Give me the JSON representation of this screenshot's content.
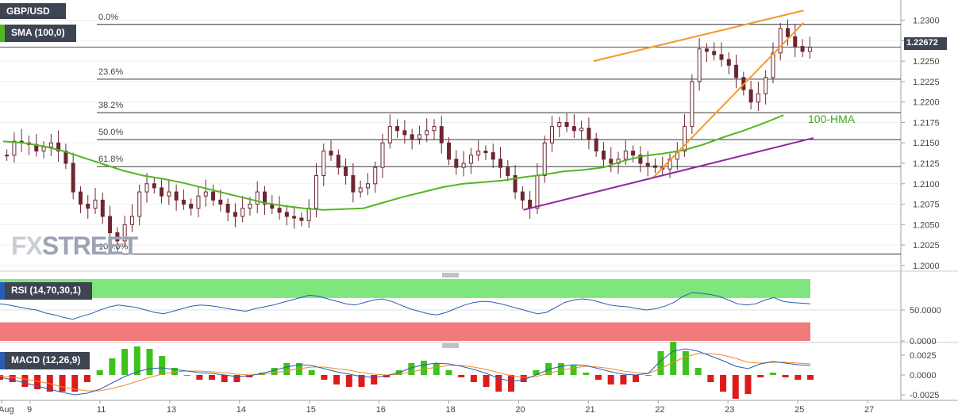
{
  "symbol": "GBP/USD",
  "watermark": {
    "part1": "FX",
    "part2": "STREET"
  },
  "indicators": {
    "sma": "SMA (100,0)",
    "rsi": "RSI (14,70,30,1)",
    "macd": "MACD (12,26,9)",
    "hma_annotation": "100-HMA"
  },
  "price_tag": "1.22672",
  "colors": {
    "candle": "#6d2630",
    "sma_line": "#54b624",
    "channel": "#f39a2b",
    "support": "#8f2b9a",
    "rsi_line": "#2a5db0",
    "rsi_overbought_zone": "#7ee67c",
    "rsi_oversold_zone": "#f17a7a",
    "macd_line": "#2a5db0",
    "signal_line": "#f08a2b",
    "hist_pos": "#3ec21c",
    "hist_neg": "#de1a1a",
    "label_bg": "#3d4452"
  },
  "chart_data": [
    {
      "type": "candlestick",
      "title": "GBP/USD",
      "y_ticks": [
        "1.2300",
        "1.2275",
        "1.2250",
        "1.2225",
        "1.2200",
        "1.2175",
        "1.2150",
        "1.2125",
        "1.2100",
        "1.2075",
        "1.2050",
        "1.2025",
        "1.2000"
      ],
      "ylim": [
        1.1995,
        1.232
      ],
      "x_ticks": [
        "Aug",
        "9",
        "11",
        "13",
        "14",
        "15",
        "16",
        "18",
        "20",
        "21",
        "22",
        "23",
        "25",
        "27"
      ],
      "last_price": 1.22672,
      "fibonacci": [
        {
          "label": "0.0%",
          "value": 1.2295
        },
        {
          "label": "23.6%",
          "value": 1.2228
        },
        {
          "label": "38.2%",
          "value": 1.2187
        },
        {
          "label": "50.0%",
          "value": 1.2154
        },
        {
          "label": "61.8%",
          "value": 1.2121
        },
        {
          "label": "100.0%",
          "value": 1.2014
        }
      ],
      "close_series": [
        1.2135,
        1.2152,
        1.215,
        1.2148,
        1.214,
        1.2145,
        1.215,
        1.214,
        1.2125,
        1.209,
        1.2075,
        1.207,
        1.208,
        1.206,
        1.204,
        1.203,
        1.205,
        1.206,
        1.209,
        1.21,
        1.2095,
        1.2085,
        1.209,
        1.208,
        1.2075,
        1.207,
        1.2085,
        1.209,
        1.208,
        1.2075,
        1.2065,
        1.206,
        1.207,
        1.2075,
        1.209,
        1.2075,
        1.207,
        1.2065,
        1.206,
        1.2058,
        1.2055,
        1.207,
        1.211,
        1.214,
        1.2135,
        1.212,
        1.211,
        1.209,
        1.2095,
        1.21,
        1.212,
        1.215,
        1.217,
        1.2165,
        1.216,
        1.2155,
        1.216,
        1.2165,
        1.217,
        1.215,
        1.213,
        1.212,
        1.2125,
        1.2135,
        1.214,
        1.2138,
        1.213,
        1.212,
        1.211,
        1.209,
        1.208,
        1.207,
        1.211,
        1.215,
        1.217,
        1.2175,
        1.217,
        1.2165,
        1.2168,
        1.2155,
        1.214,
        1.213,
        1.2125,
        1.213,
        1.214,
        1.2135,
        1.2125,
        1.2122,
        1.212,
        1.2118,
        1.213,
        1.214,
        1.217,
        1.2225,
        1.2265,
        1.2262,
        1.2258,
        1.2252,
        1.2245,
        1.223,
        1.2215,
        1.22,
        1.221,
        1.223,
        1.226,
        1.229,
        1.228,
        1.2268,
        1.2262,
        1.2267
      ],
      "sma_100": [
        1.2152,
        1.215,
        1.2146,
        1.214,
        1.2132,
        1.2124,
        1.2116,
        1.211,
        1.2106,
        1.2101,
        1.2095,
        1.2089,
        1.2083,
        1.2077,
        1.2073,
        1.207,
        1.2068,
        1.2069,
        1.207,
        1.2077,
        1.2084,
        1.209,
        1.2096,
        1.21,
        1.2102,
        1.2104,
        1.2108,
        1.2111,
        1.2115,
        1.2117,
        1.212,
        1.2128,
        1.2134,
        1.2137,
        1.2141,
        1.2148,
        1.2157,
        1.2165,
        1.2174,
        1.2184
      ],
      "sma_x": [
        0,
        2,
        4,
        6,
        8,
        10,
        12,
        14,
        16,
        18,
        20,
        22,
        24,
        26,
        28,
        30,
        32,
        34,
        36,
        38,
        40,
        42,
        44,
        46,
        48,
        50,
        52,
        54,
        56,
        58,
        60,
        62,
        64,
        66,
        68,
        70,
        72,
        74,
        76,
        78
      ],
      "trendlines": [
        {
          "name": "channel-upper",
          "from": [
            59,
            1.225
          ],
          "to": [
            80,
            1.2312
          ]
        },
        {
          "name": "channel-lower",
          "from": [
            65,
            1.2108
          ],
          "to": [
            80,
            1.2297
          ]
        },
        {
          "name": "support",
          "from": [
            52,
            1.2068
          ],
          "to": [
            81,
            1.2156
          ]
        }
      ]
    },
    {
      "type": "line",
      "title": "RSI (14,70,30,1)",
      "y_ticks": [
        "50.0000",
        "0.0000"
      ],
      "levels": [
        70,
        30
      ],
      "values": [
        60,
        58,
        55,
        52,
        50,
        45,
        42,
        38,
        35,
        40,
        44,
        50,
        55,
        58,
        56,
        54,
        50,
        46,
        44,
        48,
        52,
        56,
        58,
        57,
        55,
        52,
        50,
        48,
        52,
        55,
        58,
        62,
        66,
        70,
        74,
        72,
        68,
        64,
        60,
        58,
        62,
        66,
        68,
        64,
        58,
        52,
        48,
        44,
        42,
        46,
        52,
        58,
        62,
        64,
        63,
        60,
        56,
        52,
        48,
        44,
        46,
        54,
        62,
        66,
        68,
        66,
        62,
        58,
        56,
        55,
        52,
        50,
        52,
        56,
        62,
        72,
        78,
        77,
        75,
        72,
        66,
        60,
        58,
        60,
        66,
        70,
        64,
        62,
        61,
        60
      ]
    },
    {
      "type": "bar+line",
      "title": "MACD (12,26,9)",
      "y_ticks": [
        "0.0025",
        "0.0000",
        "-0.0025"
      ],
      "ylim": [
        -0.003,
        0.0033
      ],
      "macd": [
        -0.0003,
        -0.0006,
        -0.001,
        -0.0014,
        -0.0018,
        -0.0022,
        -0.0025,
        -0.0023,
        -0.0018,
        -0.001,
        -0.0002,
        0.0004,
        0.0008,
        0.0009,
        0.0007,
        0.0005,
        0.0003,
        0.0002,
        0.0,
        -0.0002,
        -0.0001,
        0.0002,
        0.0006,
        0.001,
        0.0013,
        0.0012,
        0.0008,
        0.0004,
        0.0001,
        -0.0002,
        -0.0003,
        -0.0001,
        0.0003,
        0.0009,
        0.0013,
        0.0015,
        0.0014,
        0.0011,
        0.0007,
        0.0002,
        -0.0004,
        -0.0008,
        -0.0006,
        0.0,
        0.0007,
        0.0011,
        0.0013,
        0.0012,
        0.0008,
        0.0004,
        0.0001,
        0.0,
        0.0002,
        0.0018,
        0.003,
        0.0033,
        0.003,
        0.0024,
        0.0018,
        0.0011,
        0.0008,
        0.0014,
        0.0017,
        0.0015,
        0.0013,
        0.0012
      ],
      "signal": [
        -0.0001,
        -0.0003,
        -0.0005,
        -0.0008,
        -0.0011,
        -0.0015,
        -0.0018,
        -0.002,
        -0.002,
        -0.0017,
        -0.0013,
        -0.0008,
        -0.0003,
        0.0001,
        0.0004,
        0.0005,
        0.0005,
        0.0004,
        0.0003,
        0.0001,
        0.0,
        0.0001,
        0.0003,
        0.0005,
        0.0008,
        0.001,
        0.001,
        0.0008,
        0.0006,
        0.0003,
        0.0001,
        0.0,
        0.0001,
        0.0004,
        0.0007,
        0.001,
        0.0012,
        0.0012,
        0.001,
        0.0007,
        0.0003,
        -0.0001,
        -0.0003,
        -0.0002,
        0.0002,
        0.0006,
        0.0009,
        0.0011,
        0.001,
        0.0008,
        0.0005,
        0.0003,
        0.0002,
        0.0008,
        0.0016,
        0.0023,
        0.0027,
        0.0027,
        0.0025,
        0.0021,
        0.0016,
        0.0015,
        0.0016,
        0.0016,
        0.0015,
        0.0014
      ]
    }
  ]
}
